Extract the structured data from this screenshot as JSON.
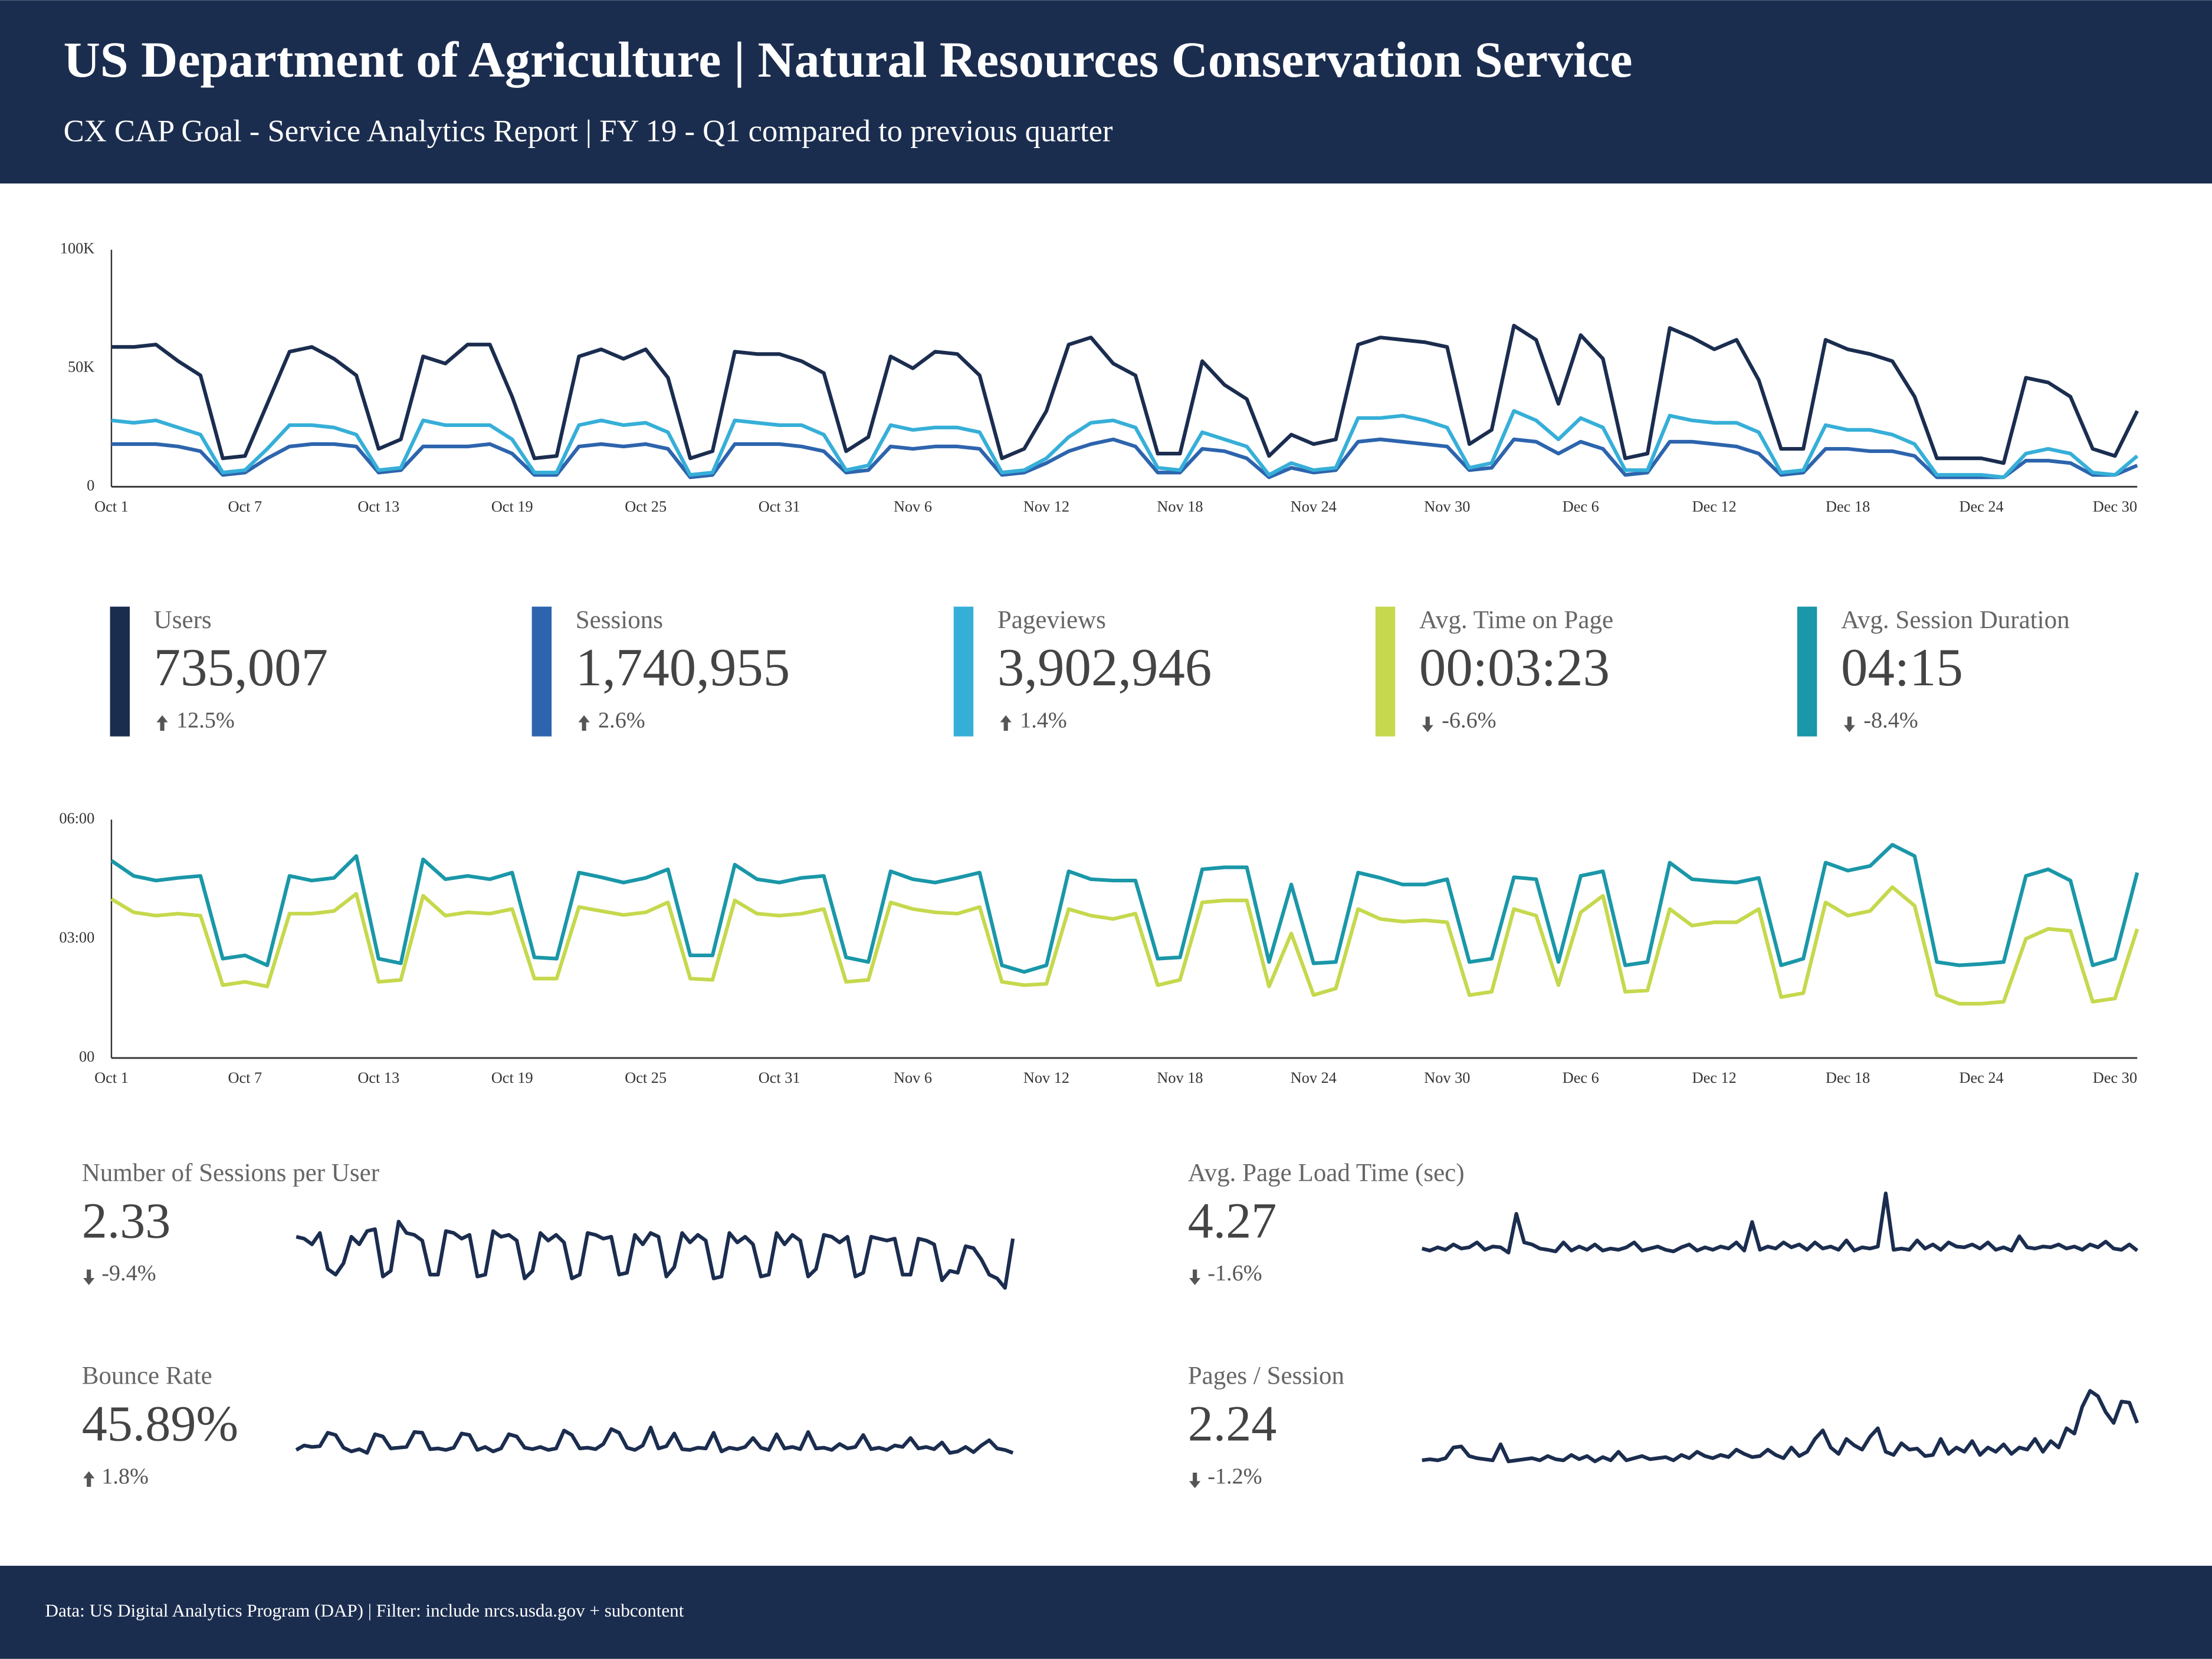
{
  "header": {
    "title": "US Department of Agriculture | Natural Resources Conservation Service",
    "subtitle": "CX CAP Goal - Service Analytics Report | FY 19 - Q1 compared to previous quarter"
  },
  "chart_data": [
    {
      "type": "line",
      "categories": [
        "Oct 1",
        null,
        null,
        null,
        null,
        null,
        "Oct 7",
        null,
        null,
        null,
        null,
        null,
        "Oct 13",
        null,
        null,
        null,
        null,
        null,
        "Oct 19",
        null,
        null,
        null,
        null,
        null,
        "Oct 25",
        null,
        null,
        null,
        null,
        null,
        "Oct 31",
        null,
        null,
        null,
        null,
        null,
        "Nov 6",
        null,
        null,
        null,
        null,
        null,
        "Nov 12",
        null,
        null,
        null,
        null,
        null,
        "Nov 18",
        null,
        null,
        null,
        null,
        null,
        "Nov 24",
        null,
        null,
        null,
        null,
        null,
        "Nov 30",
        null,
        null,
        null,
        null,
        null,
        "Dec 6",
        null,
        null,
        null,
        null,
        null,
        "Dec 12",
        null,
        null,
        null,
        null,
        null,
        "Dec 18",
        null,
        null,
        null,
        null,
        null,
        "Dec 24",
        null,
        null,
        null,
        null,
        null,
        "Dec 30",
        null
      ],
      "ylim": [
        0,
        100000
      ],
      "yticks": [
        0,
        {
          "value": 50000,
          "label": "50K"
        },
        {
          "value": 100000,
          "label": "100K"
        }
      ],
      "grid": false,
      "series": [
        {
          "name": "Users",
          "color": "#1b2d4f",
          "values": [
            59000,
            59000,
            60000,
            53000,
            47000,
            12000,
            13000,
            35000,
            57000,
            59000,
            54000,
            47000,
            16000,
            20000,
            55000,
            52000,
            60000,
            60000,
            38000,
            12000,
            13000,
            55000,
            58000,
            54000,
            58000,
            46000,
            12000,
            15000,
            57000,
            56000,
            56000,
            53000,
            48000,
            15000,
            21000,
            55000,
            50000,
            57000,
            56000,
            47000,
            12000,
            16000,
            32000,
            60000,
            63000,
            52000,
            47000,
            14000,
            14000,
            53000,
            43000,
            37000,
            13000,
            22000,
            18000,
            20000,
            60000,
            63000,
            62000,
            61000,
            59000,
            18000,
            24000,
            68000,
            62000,
            35000,
            64000,
            54000,
            12000,
            14000,
            67000,
            63000,
            58000,
            62000,
            45000,
            16000,
            16000,
            62000,
            58000,
            56000,
            53000,
            38000,
            12000,
            12000,
            12000,
            10000,
            46000,
            44000,
            38000,
            16000,
            13000,
            32000
          ]
        },
        {
          "name": "Sessions",
          "color": "#2d64ad",
          "values": [
            18000,
            18000,
            18000,
            17000,
            15000,
            5000,
            6000,
            12000,
            17000,
            18000,
            18000,
            17000,
            6000,
            7000,
            17000,
            17000,
            17000,
            18000,
            14000,
            5000,
            5000,
            17000,
            18000,
            17000,
            18000,
            16000,
            4000,
            5000,
            18000,
            18000,
            18000,
            17000,
            15000,
            6000,
            7000,
            17000,
            16000,
            17000,
            17000,
            16000,
            5000,
            6000,
            10000,
            15000,
            18000,
            20000,
            17000,
            6000,
            6000,
            16000,
            15000,
            12000,
            4000,
            8000,
            6000,
            7000,
            19000,
            20000,
            19000,
            18000,
            17000,
            7000,
            8000,
            20000,
            19000,
            14000,
            19000,
            16000,
            5000,
            6000,
            19000,
            19000,
            18000,
            17000,
            14000,
            5000,
            6000,
            16000,
            16000,
            15000,
            15000,
            13000,
            4000,
            4000,
            4000,
            4000,
            11000,
            11000,
            10000,
            5000,
            5000,
            9000
          ]
        },
        {
          "name": "Pageviews",
          "color": "#36afd8",
          "values": [
            28000,
            27000,
            28000,
            25000,
            22000,
            6000,
            7000,
            16000,
            26000,
            26000,
            25000,
            22000,
            7000,
            8000,
            28000,
            26000,
            26000,
            26000,
            20000,
            6000,
            6000,
            26000,
            28000,
            26000,
            27000,
            23000,
            5000,
            6000,
            28000,
            27000,
            26000,
            26000,
            22000,
            7000,
            9000,
            26000,
            24000,
            25000,
            25000,
            23000,
            6000,
            7000,
            12000,
            21000,
            27000,
            28000,
            25000,
            8000,
            7000,
            23000,
            20000,
            17000,
            5000,
            10000,
            7000,
            8000,
            29000,
            29000,
            30000,
            28000,
            25000,
            8000,
            10000,
            32000,
            28000,
            20000,
            29000,
            25000,
            7000,
            7000,
            30000,
            28000,
            27000,
            27000,
            23000,
            6000,
            7000,
            26000,
            24000,
            24000,
            22000,
            18000,
            5000,
            5000,
            5000,
            4000,
            14000,
            16000,
            14000,
            6000,
            5000,
            13000
          ]
        }
      ]
    },
    {
      "type": "line",
      "categories": [
        "Oct 1",
        null,
        null,
        null,
        null,
        null,
        "Oct 7",
        null,
        null,
        null,
        null,
        null,
        "Oct 13",
        null,
        null,
        null,
        null,
        null,
        "Oct 19",
        null,
        null,
        null,
        null,
        null,
        "Oct 25",
        null,
        null,
        null,
        null,
        null,
        "Oct 31",
        null,
        null,
        null,
        null,
        null,
        "Nov 6",
        null,
        null,
        null,
        null,
        null,
        "Nov 12",
        null,
        null,
        null,
        null,
        null,
        "Nov 18",
        null,
        null,
        null,
        null,
        null,
        "Nov 24",
        null,
        null,
        null,
        null,
        null,
        "Nov 30",
        null,
        null,
        null,
        null,
        null,
        "Dec 6",
        null,
        null,
        null,
        null,
        null,
        "Dec 12",
        null,
        null,
        null,
        null,
        null,
        "Dec 18",
        null,
        null,
        null,
        null,
        null,
        "Dec 24",
        null,
        null,
        null,
        null,
        null,
        "Dec 30",
        null
      ],
      "ylim": [
        0,
        360
      ],
      "yticks": [
        {
          "value": 0,
          "label": "00"
        },
        {
          "value": 180,
          "label": "03:00"
        },
        {
          "value": 360,
          "label": "06:00"
        }
      ],
      "grid": false,
      "series": [
        {
          "name": "Avg. Time on Page",
          "color": "#c6d84d",
          "values": [
            240,
            220,
            215,
            218,
            215,
            110,
            115,
            108,
            218,
            218,
            222,
            248,
            115,
            118,
            245,
            215,
            220,
            218,
            225,
            120,
            120,
            228,
            222,
            216,
            220,
            235,
            120,
            118,
            238,
            218,
            215,
            218,
            225,
            115,
            118,
            235,
            225,
            220,
            218,
            228,
            115,
            110,
            112,
            225,
            215,
            210,
            218,
            110,
            118,
            235,
            238,
            238,
            108,
            188,
            95,
            105,
            225,
            210,
            206,
            208,
            205,
            95,
            100,
            225,
            215,
            110,
            220,
            245,
            100,
            102,
            225,
            200,
            205,
            205,
            225,
            92,
            98,
            235,
            215,
            222,
            258,
            230,
            95,
            82,
            82,
            85,
            180,
            195,
            192,
            85,
            90,
            195
          ]
        },
        {
          "name": "Avg. Session Duration",
          "color": "#1a97a8",
          "values": [
            298,
            275,
            268,
            272,
            275,
            150,
            155,
            140,
            275,
            268,
            272,
            305,
            150,
            143,
            300,
            270,
            275,
            270,
            280,
            152,
            150,
            280,
            273,
            265,
            272,
            285,
            155,
            155,
            292,
            270,
            265,
            272,
            275,
            152,
            145,
            282,
            270,
            265,
            272,
            280,
            140,
            130,
            140,
            282,
            270,
            268,
            268,
            150,
            152,
            285,
            288,
            288,
            145,
            262,
            143,
            145,
            280,
            272,
            262,
            262,
            270,
            145,
            150,
            273,
            270,
            145,
            275,
            282,
            140,
            145,
            295,
            270,
            267,
            265,
            272,
            140,
            150,
            295,
            283,
            290,
            322,
            305,
            145,
            140,
            142,
            145,
            275,
            285,
            268,
            140,
            150,
            280
          ]
        }
      ]
    },
    {
      "type": "line",
      "title": "Number of Sessions per User",
      "value": "2.33",
      "change": "-9.4%",
      "color": "#1b2d4f",
      "values": [
        2.42,
        2.41,
        2.38,
        2.44,
        2.25,
        2.22,
        2.28,
        2.42,
        2.38,
        2.45,
        2.46,
        2.21,
        2.24,
        2.5,
        2.44,
        2.43,
        2.4,
        2.22,
        2.22,
        2.45,
        2.44,
        2.41,
        2.43,
        2.21,
        2.22,
        2.45,
        2.42,
        2.43,
        2.4,
        2.2,
        2.24,
        2.44,
        2.4,
        2.43,
        2.39,
        2.2,
        2.22,
        2.44,
        2.43,
        2.41,
        2.42,
        2.22,
        2.23,
        2.43,
        2.38,
        2.44,
        2.42,
        2.21,
        2.26,
        2.44,
        2.39,
        2.43,
        2.4,
        2.2,
        2.21,
        2.44,
        2.39,
        2.42,
        2.38,
        2.21,
        2.22,
        2.44,
        2.38,
        2.43,
        2.4,
        2.21,
        2.25,
        2.43,
        2.42,
        2.39,
        2.42,
        2.21,
        2.23,
        2.42,
        2.41,
        2.4,
        2.41,
        2.22,
        2.22,
        2.41,
        2.4,
        2.38,
        2.19,
        2.24,
        2.23,
        2.37,
        2.36,
        2.3,
        2.22,
        2.2,
        2.15,
        2.41
      ]
    },
    {
      "type": "line",
      "title": "Avg. Page Load Time (sec)",
      "value": "4.27",
      "change": "-1.6%",
      "color": "#1b2d4f",
      "values": [
        4.25,
        4.2,
        4.28,
        4.22,
        4.35,
        4.25,
        4.28,
        4.4,
        4.22,
        4.3,
        4.28,
        4.15,
        5.1,
        4.4,
        4.35,
        4.25,
        4.22,
        4.18,
        4.4,
        4.2,
        4.3,
        4.22,
        4.35,
        4.2,
        4.25,
        4.22,
        4.28,
        4.4,
        4.2,
        4.25,
        4.3,
        4.22,
        4.18,
        4.28,
        4.35,
        4.2,
        4.28,
        4.22,
        4.3,
        4.25,
        4.4,
        4.2,
        4.9,
        4.22,
        4.3,
        4.25,
        4.4,
        4.28,
        4.35,
        4.22,
        4.4,
        4.25,
        4.3,
        4.22,
        4.45,
        4.2,
        4.28,
        4.25,
        4.3,
        5.6,
        4.22,
        4.25,
        4.22,
        4.45,
        4.25,
        4.35,
        4.22,
        4.4,
        4.3,
        4.28,
        4.35,
        4.25,
        4.4,
        4.22,
        4.28,
        4.2,
        4.55,
        4.28,
        4.25,
        4.3,
        4.28,
        4.35,
        4.25,
        4.3,
        4.22,
        4.35,
        4.28,
        4.42,
        4.25,
        4.22,
        4.35,
        4.2
      ]
    },
    {
      "type": "line",
      "title": "Bounce Rate",
      "value": "45.89%",
      "change": "1.8%",
      "color": "#1b2d4f",
      "values": [
        45.2,
        45.8,
        45.6,
        45.7,
        47.5,
        47.2,
        45.5,
        45.0,
        45.3,
        44.8,
        47.3,
        47.0,
        45.4,
        45.5,
        45.6,
        47.6,
        47.5,
        45.3,
        45.4,
        45.2,
        45.5,
        47.4,
        47.2,
        45.2,
        45.6,
        45.0,
        45.4,
        47.3,
        47.0,
        45.5,
        45.3,
        45.6,
        45.2,
        45.4,
        47.8,
        47.2,
        45.4,
        45.5,
        45.3,
        46.0,
        48.0,
        47.5,
        45.5,
        45.2,
        45.8,
        48.2,
        45.4,
        45.7,
        47.4,
        45.3,
        45.2,
        45.5,
        45.4,
        47.5,
        45.0,
        45.5,
        45.3,
        45.6,
        46.8,
        45.5,
        45.2,
        47.3,
        45.4,
        45.6,
        45.3,
        47.6,
        45.4,
        45.5,
        45.2,
        46.0,
        45.4,
        45.6,
        47.2,
        45.3,
        45.5,
        45.2,
        45.8,
        45.6,
        46.8,
        45.4,
        45.6,
        45.3,
        46.2,
        44.8,
        45.0,
        45.6,
        44.9,
        45.8,
        46.5,
        45.4,
        45.2,
        44.8
      ]
    },
    {
      "type": "line",
      "title": "Pages / Session",
      "value": "2.24",
      "change": "-1.2%",
      "color": "#1b2d4f",
      "values": [
        2.1,
        2.11,
        2.1,
        2.12,
        2.22,
        2.23,
        2.14,
        2.12,
        2.11,
        2.1,
        2.25,
        2.09,
        2.1,
        2.11,
        2.12,
        2.1,
        2.14,
        2.11,
        2.1,
        2.15,
        2.11,
        2.14,
        2.09,
        2.13,
        2.1,
        2.18,
        2.1,
        2.12,
        2.14,
        2.11,
        2.12,
        2.13,
        2.1,
        2.15,
        2.12,
        2.18,
        2.14,
        2.12,
        2.15,
        2.13,
        2.2,
        2.16,
        2.13,
        2.14,
        2.2,
        2.15,
        2.12,
        2.22,
        2.14,
        2.18,
        2.3,
        2.38,
        2.22,
        2.16,
        2.3,
        2.24,
        2.2,
        2.32,
        2.4,
        2.18,
        2.15,
        2.26,
        2.2,
        2.21,
        2.14,
        2.15,
        2.3,
        2.16,
        2.22,
        2.18,
        2.28,
        2.15,
        2.22,
        2.18,
        2.25,
        2.16,
        2.22,
        2.2,
        2.3,
        2.18,
        2.28,
        2.22,
        2.4,
        2.35,
        2.6,
        2.75,
        2.7,
        2.55,
        2.45,
        2.65,
        2.64,
        2.45
      ]
    }
  ],
  "kpis": [
    {
      "value": "735,007",
      "change": "12.5%"
    },
    {
      "value": "1,740,955",
      "change": "2.6%"
    },
    {
      "value": "3,902,946",
      "change": "1.4%"
    },
    {
      "value": "00:03:23",
      "change": "-6.6%"
    },
    {
      "value": "04:15",
      "change": "-8.4%"
    }
  ],
  "footer": {
    "text": "Data: US Digital Analytics Program (DAP) | Filter: include nrcs.usda.gov + subcontent"
  }
}
